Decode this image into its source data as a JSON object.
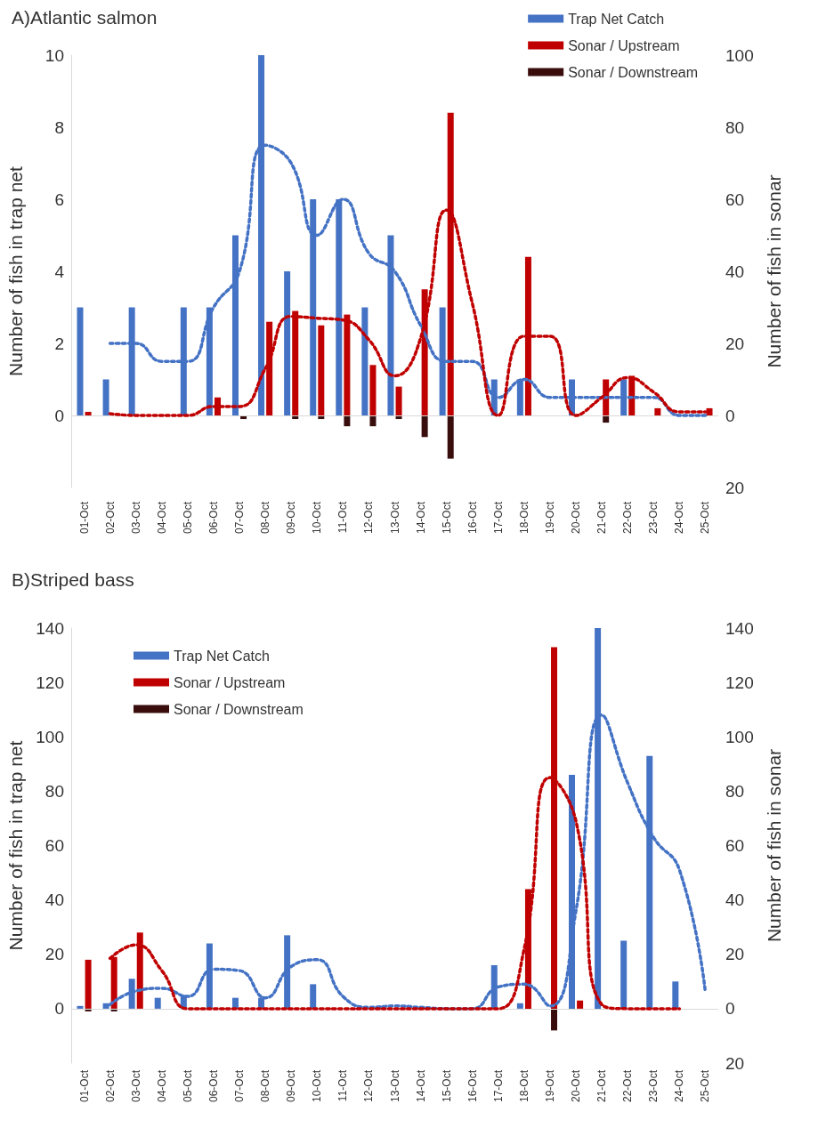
{
  "chart_data": [
    {
      "type": "bar",
      "title": "A)Atlantic salmon",
      "ylabel": "Number of fish in trap net",
      "y2label": "Number of fish in sonar",
      "legend": "top right",
      "grid": false,
      "ref_lines": [
        {
          "axis": "y",
          "value": 0,
          "color": "#d9d9d9"
        }
      ],
      "categories": [
        "01-Oct",
        "02-Oct",
        "03-Oct",
        "04-Oct",
        "05-Oct",
        "06-Oct",
        "07-Oct",
        "08-Oct",
        "09-Oct",
        "10-Oct",
        "11-Oct",
        "12-Oct",
        "13-Oct",
        "14-Oct",
        "15-Oct",
        "16-Oct",
        "17-Oct",
        "18-Oct",
        "19-Oct",
        "20-Oct",
        "21-Oct",
        "22-Oct",
        "23-Oct",
        "24-Oct",
        "25-Oct"
      ],
      "ylim": [
        -2,
        10
      ],
      "yticks": [
        0,
        2,
        4,
        6,
        8,
        10
      ],
      "y2lim": [
        -20,
        100
      ],
      "y2ticks": [
        {
          "value": -20,
          "label": "20"
        },
        0,
        20,
        40,
        60,
        80,
        100
      ],
      "series": [
        {
          "name": "Trap Net Catch",
          "color": "#4472c4",
          "values": [
            3,
            1,
            3,
            0,
            3,
            3,
            5,
            10,
            4,
            6,
            6,
            3,
            5,
            0,
            3,
            0,
            1,
            1,
            0,
            1,
            0,
            1,
            0,
            0,
            0
          ]
        },
        {
          "name": "Sonar / Upstream",
          "color": "#c00000",
          "axis": "y2",
          "values": [
            1,
            0,
            0,
            0,
            0,
            5,
            0,
            26,
            29,
            25,
            28,
            14,
            8,
            35,
            84,
            0,
            0,
            44,
            0,
            0,
            10,
            11,
            2,
            0,
            2
          ]
        },
        {
          "name": "Sonar / Downstream",
          "color": "#3a0d0d",
          "axis": "y2",
          "values": [
            0,
            0,
            0,
            0,
            0,
            0,
            -1,
            0,
            -1,
            -1,
            -3,
            -3,
            -1,
            -6,
            -12,
            0,
            0,
            0,
            0,
            0,
            -2,
            0,
            0,
            0,
            0
          ]
        },
        {
          "type": "line",
          "line_style": "dotted",
          "color": "#4472c4",
          "values": [
            null,
            2,
            2,
            1.5,
            1.5,
            3,
            4,
            7.5,
            7,
            5,
            6,
            4.5,
            4,
            2.5,
            1.5,
            1.5,
            0.5,
            1,
            0.5,
            0.5,
            0.5,
            0.5,
            0.5,
            0,
            0
          ]
        },
        {
          "type": "line",
          "line_style": "dotted",
          "axis": "y2",
          "color": "#c00000",
          "values": [
            null,
            0.5,
            0,
            0,
            0,
            2.5,
            2.5,
            13,
            27.5,
            27,
            26.5,
            21,
            11,
            21.5,
            57,
            31,
            0,
            22,
            22,
            0,
            5,
            10.5,
            6.5,
            1,
            1
          ]
        }
      ]
    },
    {
      "type": "bar",
      "title": "B)Striped bass",
      "ylabel": "Number of fish in trap net",
      "y2label": "Number of fish in sonar",
      "legend": "top left",
      "grid": false,
      "ref_lines": [
        {
          "axis": "y",
          "value": 0,
          "color": "#d9d9d9"
        }
      ],
      "categories": [
        "01-Oct",
        "02-Oct",
        "03-Oct",
        "04-Oct",
        "05-Oct",
        "06-Oct",
        "07-Oct",
        "08-Oct",
        "09-Oct",
        "10-Oct",
        "11-Oct",
        "12-Oct",
        "13-Oct",
        "14-Oct",
        "15-Oct",
        "16-Oct",
        "17-Oct",
        "18-Oct",
        "19-Oct",
        "20-Oct",
        "21-Oct",
        "22-Oct",
        "23-Oct",
        "24-Oct",
        "25-Oct"
      ],
      "ylim": [
        -20,
        140
      ],
      "yticks": [
        0,
        20,
        40,
        60,
        80,
        100,
        120,
        140
      ],
      "y2lim": [
        -20,
        140
      ],
      "y2ticks": [
        {
          "value": -20,
          "label": "20"
        },
        0,
        20,
        40,
        60,
        80,
        100,
        120,
        140
      ],
      "series": [
        {
          "name": "Trap Net Catch",
          "color": "#4472c4",
          "values": [
            1,
            2,
            11,
            4,
            5,
            24,
            4,
            4,
            27,
            9,
            0,
            null,
            null,
            0,
            0,
            0,
            16,
            2,
            0,
            86,
            140,
            25,
            93,
            10,
            0
          ]
        },
        {
          "name": "Sonar / Upstream",
          "color": "#c00000",
          "axis": "y2",
          "values": [
            18,
            19,
            28,
            0,
            0,
            0,
            0,
            0,
            0,
            0,
            0,
            0,
            0,
            0,
            0,
            0,
            0,
            44,
            133,
            3,
            0,
            0,
            0,
            0,
            0
          ]
        },
        {
          "name": "Sonar / Downstream",
          "color": "#3a0d0d",
          "axis": "y2",
          "values": [
            -1,
            -1,
            0,
            0,
            0,
            0,
            0,
            0,
            0,
            0,
            0,
            0,
            0,
            0,
            0,
            0,
            0,
            0,
            -8,
            0,
            0,
            0,
            0,
            0,
            0
          ]
        },
        {
          "type": "line",
          "line_style": "dotted",
          "color": "#4472c4",
          "values": [
            null,
            1.5,
            6.5,
            7.5,
            4.5,
            14.5,
            14,
            4,
            15.5,
            18,
            4.5,
            0.5,
            1,
            0.5,
            0,
            0,
            8,
            9,
            1,
            36,
            108,
            83,
            63,
            51,
            6
          ]
        },
        {
          "type": "line",
          "line_style": "dotted",
          "axis": "y2",
          "color": "#c00000",
          "values": [
            null,
            18.5,
            23.5,
            14,
            0,
            0,
            0,
            0,
            0,
            0,
            0,
            0,
            0,
            0,
            0,
            0,
            0,
            22,
            85,
            69,
            1.5,
            0,
            0,
            0,
            null
          ]
        }
      ]
    }
  ]
}
